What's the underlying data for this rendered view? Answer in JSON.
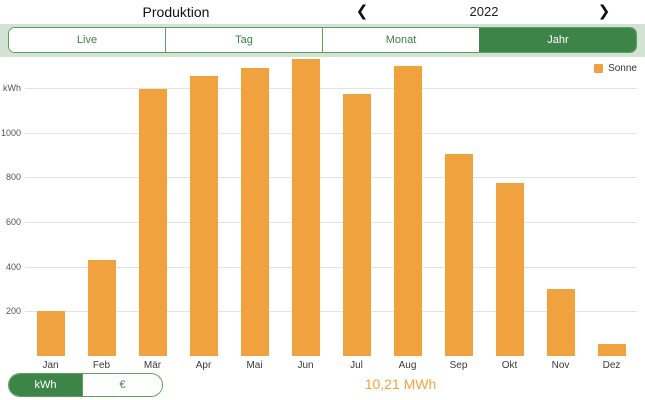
{
  "header": {
    "title": "Produktion",
    "year": "2022",
    "prev_icon": "❮",
    "next_icon": "❯"
  },
  "tabs": [
    {
      "label": "Live",
      "selected": false
    },
    {
      "label": "Tag",
      "selected": false
    },
    {
      "label": "Monat",
      "selected": false
    },
    {
      "label": "Jahr",
      "selected": true
    }
  ],
  "legend": {
    "label": "Sonne"
  },
  "chart_data": {
    "type": "bar",
    "title": "Produktion 2022",
    "categories": [
      "Jan",
      "Feb",
      "Mär",
      "Apr",
      "Mai",
      "Jun",
      "Jul",
      "Aug",
      "Sep",
      "Okt",
      "Nov",
      "Dez"
    ],
    "series": [
      {
        "name": "Sonne",
        "values": [
          200,
          430,
          1195,
          1255,
          1290,
          1330,
          1175,
          1300,
          905,
          775,
          300,
          55
        ]
      }
    ],
    "unit": "kWh",
    "ylabel": "kWh",
    "ylim": [
      0,
      1340
    ],
    "yticks": [
      {
        "value": 200,
        "label": "200"
      },
      {
        "value": 400,
        "label": "400"
      },
      {
        "value": 600,
        "label": "600"
      },
      {
        "value": 800,
        "label": "800"
      },
      {
        "value": 1000,
        "label": "1000"
      },
      {
        "value": 1200,
        "label": "kWh"
      }
    ],
    "grid": true,
    "legend_position": "top-right",
    "total_label": "10,21 MWh"
  },
  "footer": {
    "units": [
      {
        "label": "kWh",
        "selected": true
      },
      {
        "label": "€",
        "selected": false
      }
    ],
    "total": "10,21 MWh"
  },
  "colors": {
    "accent_green": "#3C8448",
    "green_border": "#5BA061",
    "band_green": "#D3E3D3",
    "bar_orange": "#F0A23E",
    "total_orange": "#F5A43C",
    "grid_gray": "#E4E4E4",
    "tick_gray": "#555555"
  }
}
